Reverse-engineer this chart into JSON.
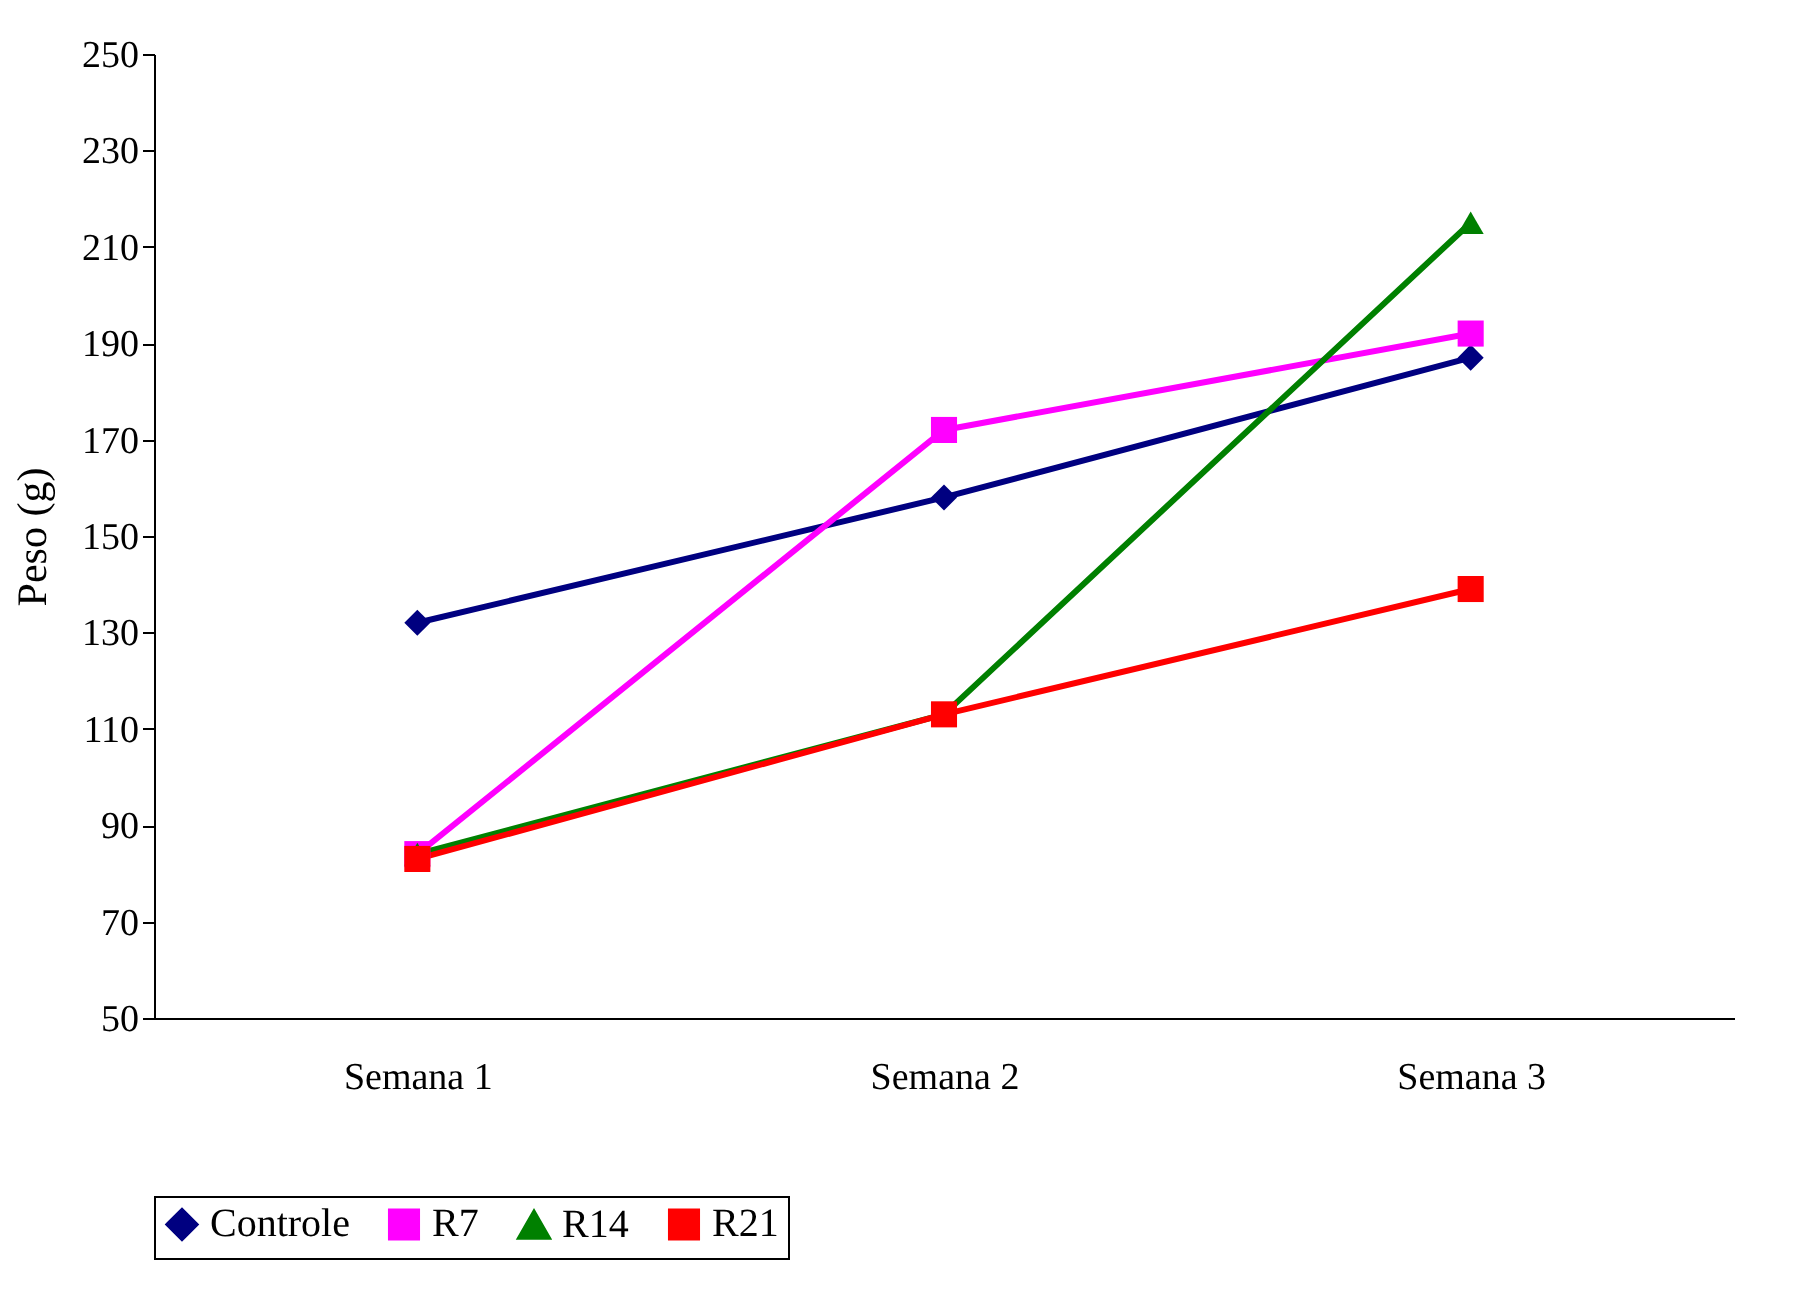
{
  "chart_data": {
    "type": "line",
    "ylabel": "Peso (g)",
    "categories": [
      "Semana 1",
      "Semana 2",
      "Semana 3"
    ],
    "series": [
      {
        "name": "Controle",
        "color": "#000080",
        "marker": "diamond",
        "values": [
          132,
          158,
          187
        ]
      },
      {
        "name": "R7",
        "color": "#ff00ff",
        "marker": "square",
        "values": [
          84,
          172,
          192
        ]
      },
      {
        "name": "R14",
        "color": "#008000",
        "marker": "triangle",
        "values": [
          84,
          113,
          215
        ]
      },
      {
        "name": "R21",
        "color": "#ff0000",
        "marker": "square",
        "values": [
          83,
          113,
          139
        ]
      }
    ],
    "ylim": [
      50,
      250
    ],
    "yticks": [
      50,
      70,
      90,
      110,
      130,
      150,
      170,
      190,
      210,
      230,
      250
    ],
    "grid": false,
    "legend": "bottom",
    "line_style": "solid"
  }
}
